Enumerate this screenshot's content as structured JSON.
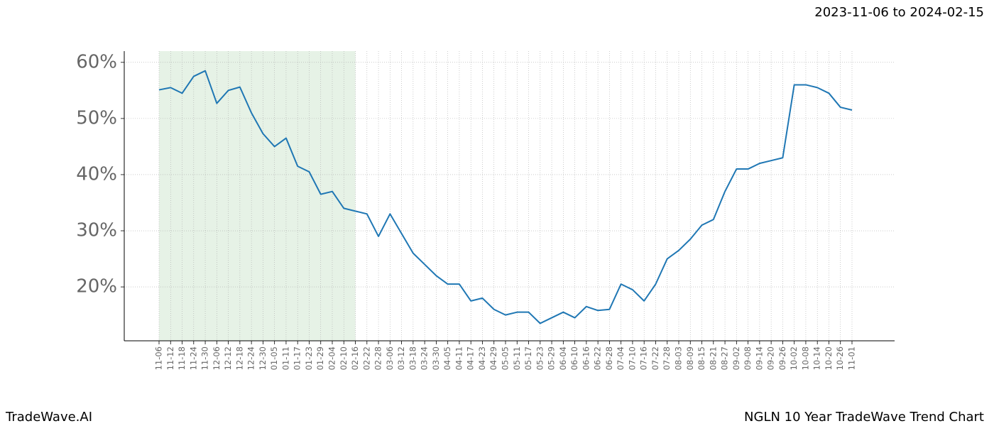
{
  "header": "2023-11-06 to 2024-02-15",
  "footer_left": "TradeWave.AI",
  "footer_right": "NGLN 10 Year TradeWave Trend Chart",
  "chart_data": {
    "type": "line",
    "categories": [
      "11-06",
      "11-12",
      "11-18",
      "11-24",
      "11-30",
      "12-06",
      "12-12",
      "12-18",
      "12-24",
      "12-30",
      "01-05",
      "01-11",
      "01-17",
      "01-23",
      "01-29",
      "02-04",
      "02-10",
      "02-16",
      "02-22",
      "02-28",
      "03-06",
      "03-12",
      "03-18",
      "03-24",
      "03-30",
      "04-05",
      "04-11",
      "04-17",
      "04-23",
      "04-29",
      "05-05",
      "05-11",
      "05-17",
      "05-23",
      "05-29",
      "06-04",
      "06-10",
      "06-16",
      "06-22",
      "06-28",
      "07-04",
      "07-10",
      "07-16",
      "07-22",
      "07-28",
      "08-03",
      "08-09",
      "08-15",
      "08-21",
      "08-27",
      "09-02",
      "09-08",
      "09-14",
      "09-20",
      "09-26",
      "10-02",
      "10-08",
      "10-14",
      "10-20",
      "10-26",
      "11-01"
    ],
    "series": [
      {
        "color": "#1f77b4",
        "values": [
          55.1,
          55.5,
          54.5,
          57.5,
          58.5,
          52.7,
          55,
          55.6,
          51,
          47.3,
          45,
          46.5,
          41.5,
          40.5,
          36.5,
          37,
          34,
          33.5,
          33,
          29,
          33,
          29.5,
          26,
          24,
          22,
          20.5,
          20.5,
          17.5,
          18,
          16,
          15,
          15.5,
          15.5,
          13.5,
          14.5,
          15.5,
          14.5,
          16.5,
          15.8,
          16,
          20.5,
          19.5,
          17.5,
          20.5,
          25,
          26.5,
          28.5,
          31,
          32,
          37,
          41,
          41,
          42,
          42.5,
          43,
          56,
          56,
          55.5,
          54.5,
          52,
          51.5
        ]
      }
    ],
    "ylim": [
      10.4,
      62
    ],
    "yticks": [
      {
        "value": 20,
        "label": "20%"
      },
      {
        "value": 30,
        "label": "30%"
      },
      {
        "value": 40,
        "label": "40%"
      },
      {
        "value": 50,
        "label": "50%"
      },
      {
        "value": 60,
        "label": "60%"
      }
    ],
    "highlight": [
      "11-06",
      "02-16"
    ],
    "highlight_color": "#e6f2e6",
    "grid": true
  }
}
